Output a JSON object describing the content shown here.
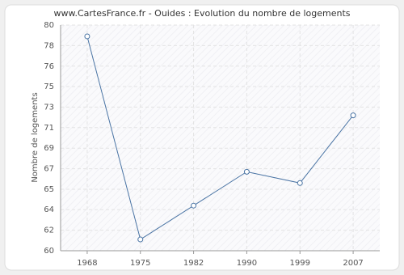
{
  "chart_data": {
    "type": "line",
    "title": "www.CartesFrance.fr - Ouides : Evolution du nombre de logements",
    "y_label": "Nombre de logements",
    "categories": [
      "1968",
      "1975",
      "1982",
      "1990",
      "1999",
      "2007"
    ],
    "series": [
      {
        "name": "Nombre de logements",
        "color": "#4a74a4",
        "values": [
          79,
          61,
          64,
          67,
          66,
          72
        ]
      }
    ],
    "ylim": [
      60,
      80
    ],
    "yticks": [
      60,
      {
        "value": 61.82,
        "label": "62"
      },
      {
        "value": 63.64,
        "label": "64"
      },
      {
        "value": 65.45,
        "label": "65"
      },
      {
        "value": 67.27,
        "label": "67"
      },
      {
        "value": 69.09,
        "label": "69"
      },
      {
        "value": 70.91,
        "label": "71"
      },
      {
        "value": 72.73,
        "label": "73"
      },
      {
        "value": 74.55,
        "label": "75"
      },
      {
        "value": 76.36,
        "label": "76"
      },
      {
        "value": 78.18,
        "label": "78"
      },
      80
    ],
    "grid": true
  }
}
